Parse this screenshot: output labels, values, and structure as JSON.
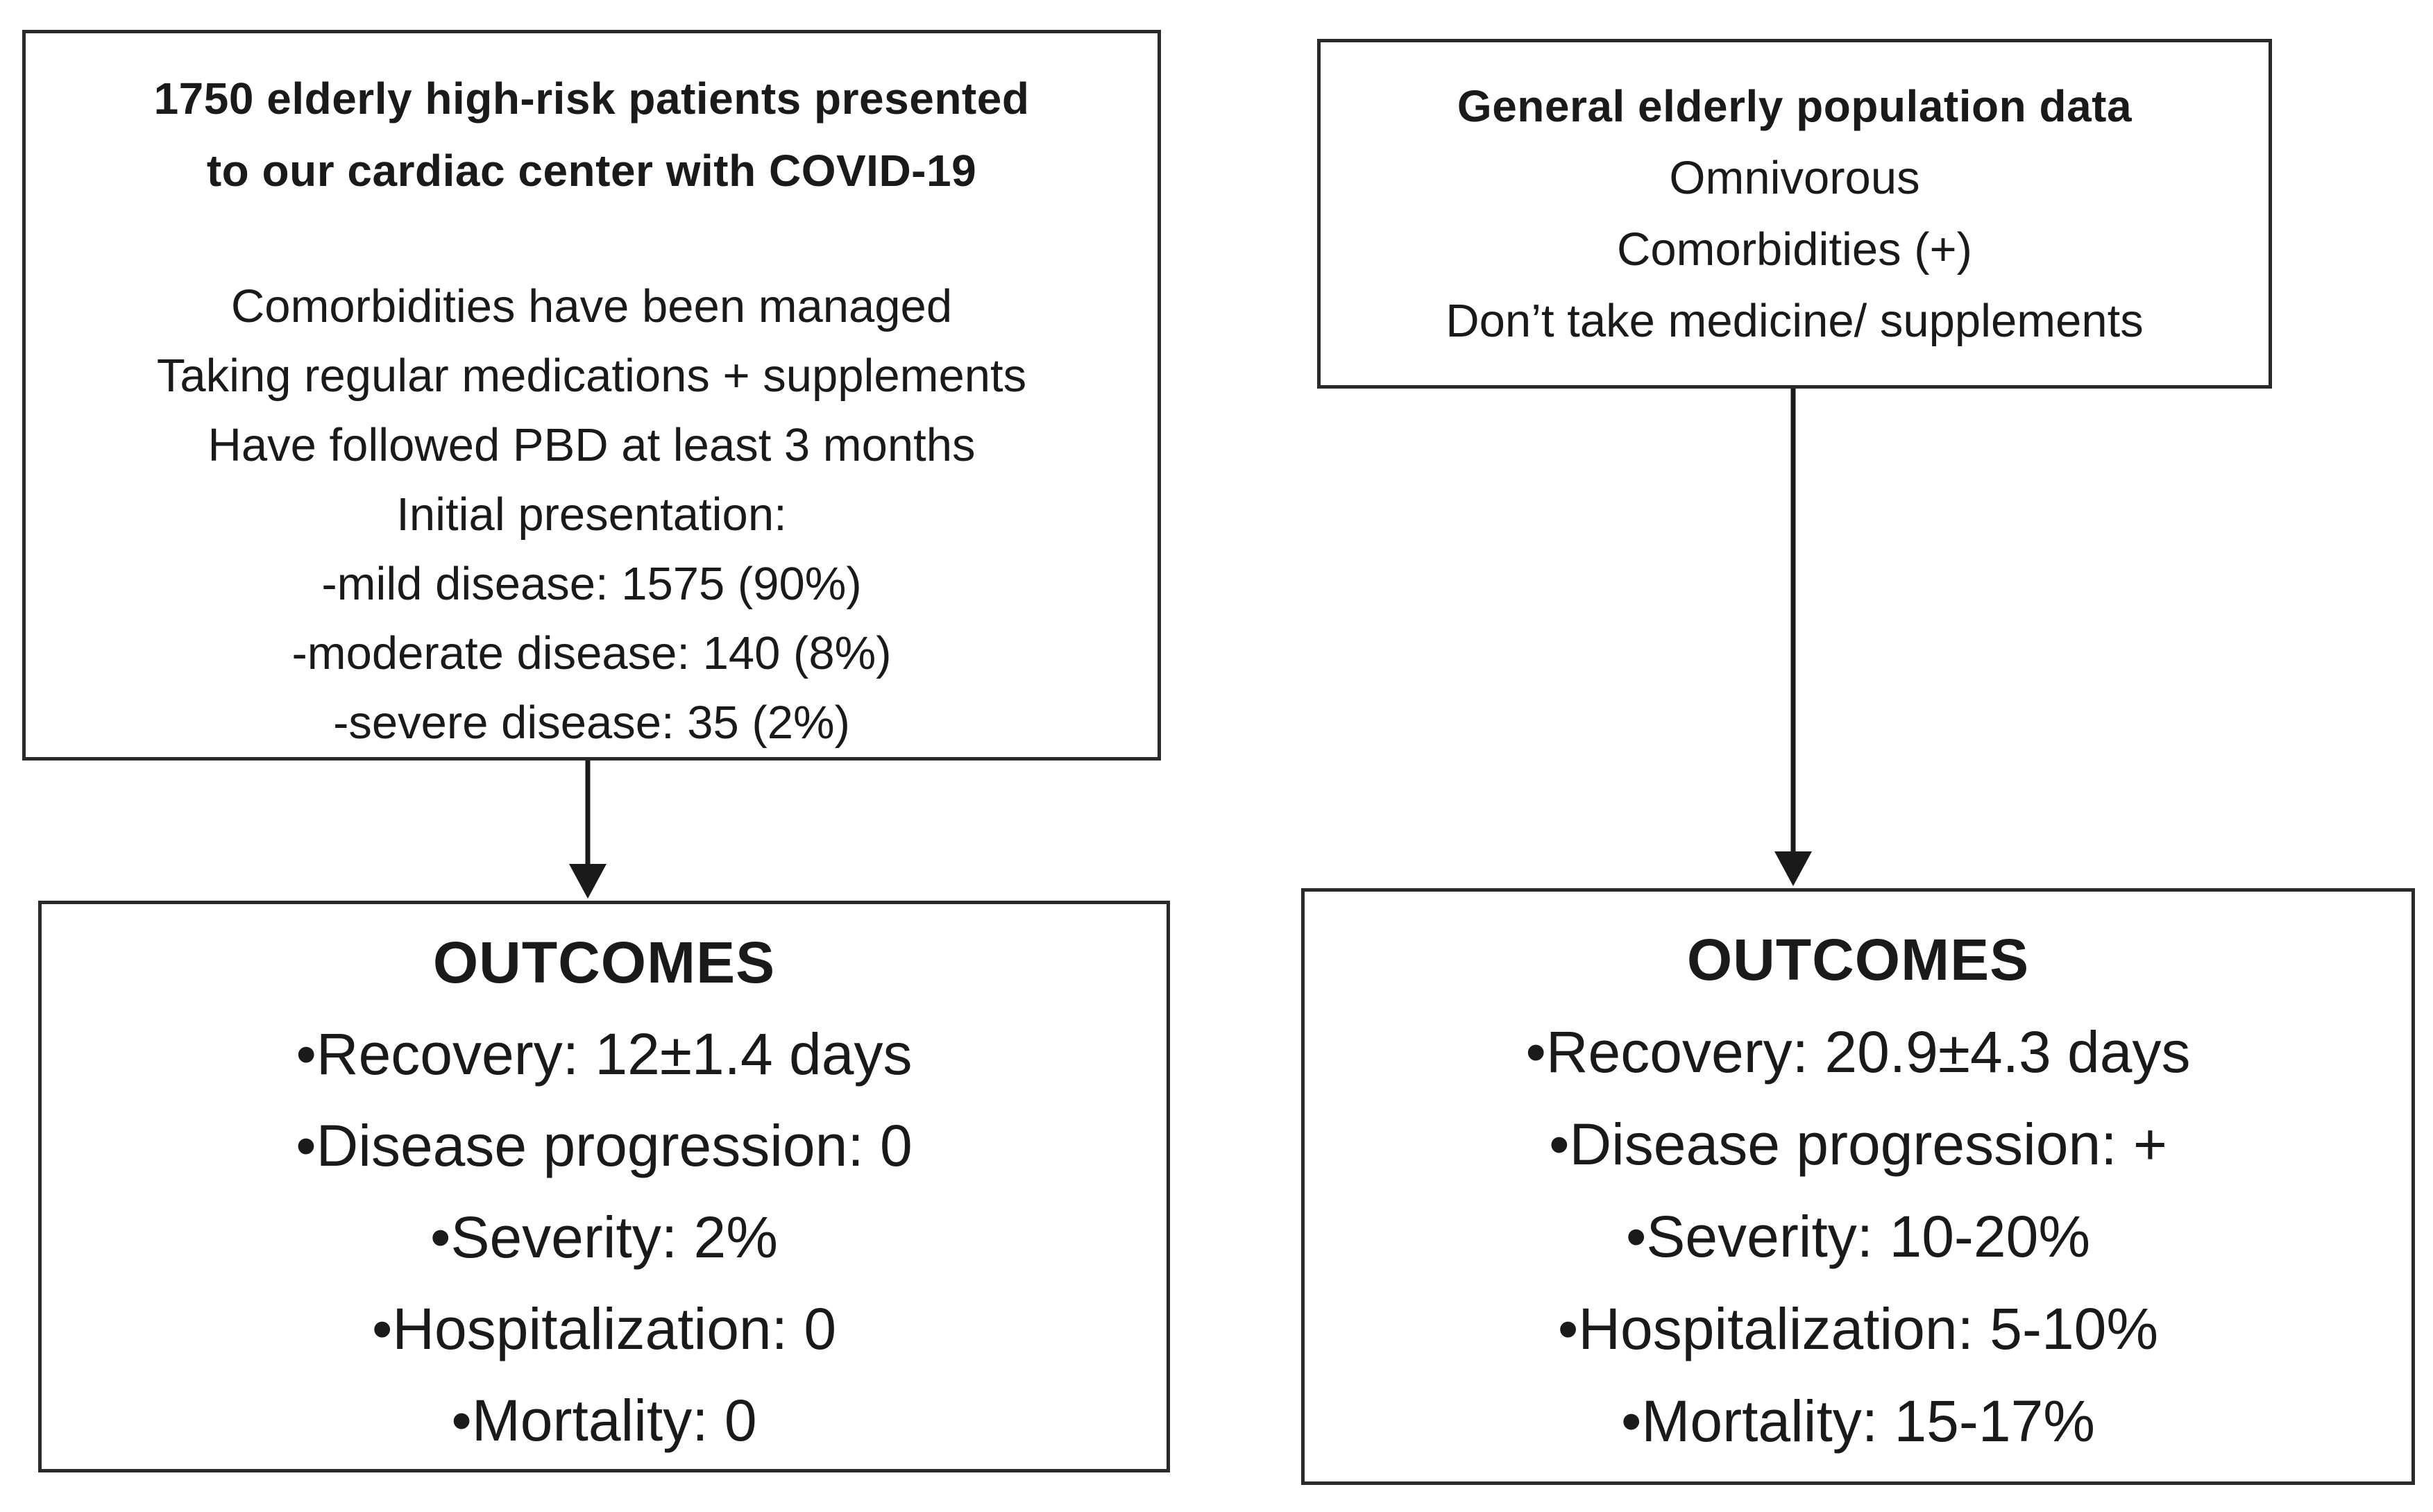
{
  "diagram": {
    "cohort_box": {
      "title_lines": [
        "1750 elderly high-risk patients presented",
        "to our cardiac center with COVID-19"
      ],
      "body_lines": [
        "Comorbidities have been managed",
        "Taking regular medications + supplements",
        "Have followed PBD at least 3 months",
        "Initial presentation:",
        "-mild disease: 1575 (90%)",
        "-moderate disease: 140 (8%)",
        "-severe disease: 35 (2%)"
      ]
    },
    "general_box": {
      "title_lines": [
        "General elderly population data"
      ],
      "body_lines": [
        "Omnivorous",
        "Comorbidities (+)",
        "Don’t take medicine/ supplements"
      ]
    },
    "cohort_outcomes_box": {
      "title": "OUTCOMES",
      "items": [
        "•Recovery: 12±1.4 days",
        "•Disease progression: 0",
        "•Severity: 2%",
        "•Hospitalization: 0",
        "•Mortality: 0"
      ]
    },
    "general_outcomes_box": {
      "title": "OUTCOMES",
      "items": [
        "•Recovery: 20.9±4.3 days",
        "•Disease progression: +",
        "•Severity: 10-20%",
        "•Hospitalization: 5-10%",
        "•Mortality: 15-17%"
      ]
    },
    "colors": {
      "text": "#1a1a1a",
      "border": "#2a2a2a",
      "background": "#ffffff"
    }
  }
}
